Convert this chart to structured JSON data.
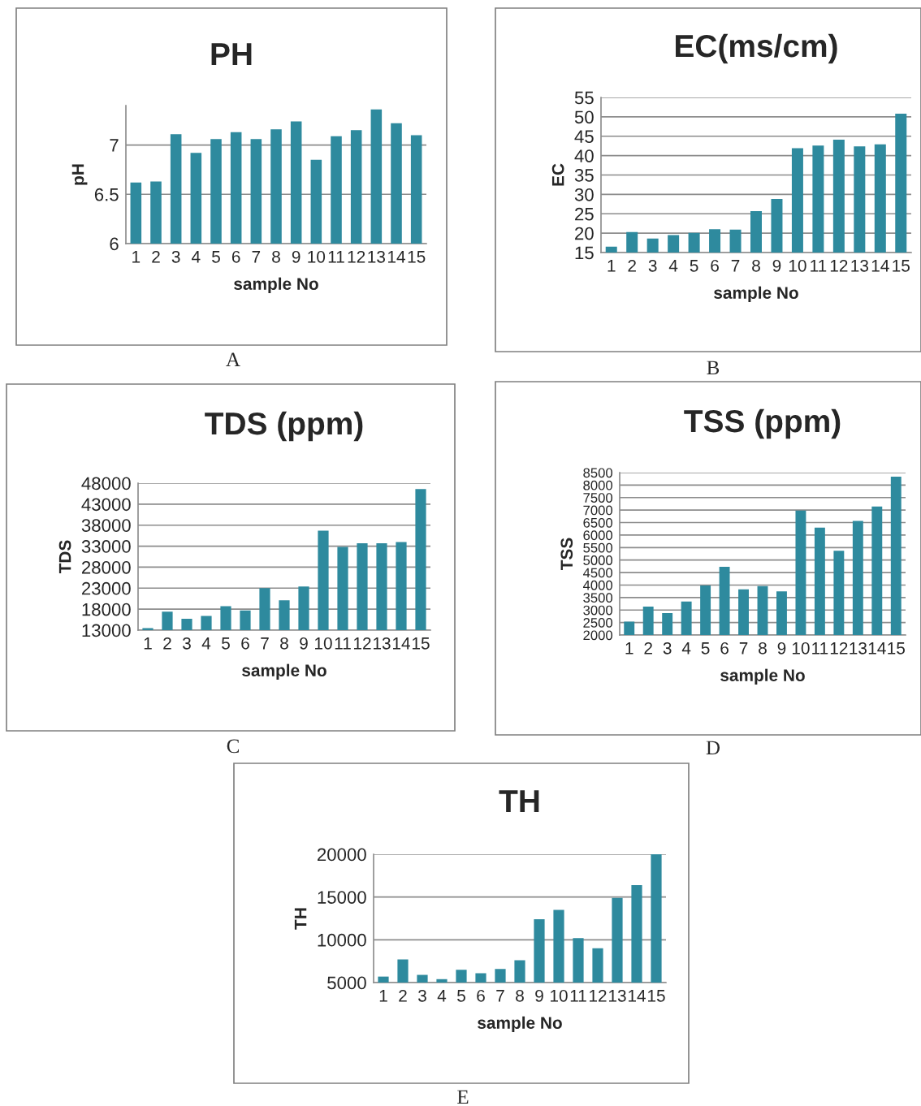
{
  "chart_data": [
    {
      "type": "bar",
      "title": "PH",
      "xlabel": "sample No",
      "ylabel": "pH",
      "annotations": [
        "A"
      ],
      "categories": [
        "1",
        "2",
        "3",
        "4",
        "5",
        "6",
        "7",
        "8",
        "9",
        "10",
        "11",
        "12",
        "13",
        "14",
        "15"
      ],
      "color": "#2e8a9e",
      "values": [
        6.62,
        6.63,
        7.11,
        6.92,
        7.06,
        7.13,
        7.06,
        7.16,
        7.24,
        6.85,
        7.09,
        7.15,
        7.36,
        7.22,
        7.1
      ],
      "ylim": [
        6,
        7.4
      ],
      "yticks": [
        6,
        6.5,
        7
      ],
      "grid": "y"
    },
    {
      "type": "bar",
      "title": "EC(ms/cm)",
      "xlabel": "sample No",
      "ylabel": "EC",
      "annotations": [
        "B"
      ],
      "categories": [
        "1",
        "2",
        "3",
        "4",
        "5",
        "6",
        "7",
        "8",
        "9",
        "10",
        "11",
        "12",
        "13",
        "14",
        "15"
      ],
      "color": "#2e8a9e",
      "values": [
        16.5,
        20.3,
        18.6,
        19.5,
        20.1,
        21.0,
        20.9,
        25.7,
        28.8,
        41.9,
        42.6,
        44.1,
        42.4,
        42.9,
        50.8
      ],
      "ylim": [
        15,
        55
      ],
      "yticks": [
        15,
        20,
        25,
        30,
        35,
        40,
        45,
        50,
        55
      ],
      "grid": "y"
    },
    {
      "type": "bar",
      "title": "TDS (ppm)",
      "xlabel": "sample No",
      "ylabel": "TDS",
      "annotations": [
        "C"
      ],
      "categories": [
        "1",
        "2",
        "3",
        "4",
        "5",
        "6",
        "7",
        "8",
        "9",
        "10",
        "11",
        "12",
        "13",
        "14",
        "15"
      ],
      "color": "#2e8a9e",
      "values": [
        13500,
        17400,
        15700,
        16400,
        18700,
        17700,
        23000,
        20100,
        23400,
        36700,
        32800,
        33700,
        33700,
        34000,
        46600
      ],
      "ylim": [
        13000,
        48000
      ],
      "yticks": [
        13000,
        18000,
        23000,
        28000,
        33000,
        38000,
        43000,
        48000
      ],
      "grid": "y"
    },
    {
      "type": "bar",
      "title": "TSS (ppm)",
      "xlabel": "sample No",
      "ylabel": "TSS",
      "annotations": [
        "D"
      ],
      "categories": [
        "1",
        "2",
        "3",
        "4",
        "5",
        "6",
        "7",
        "8",
        "9",
        "10",
        "11",
        "12",
        "13",
        "14",
        "15"
      ],
      "color": "#2e8a9e",
      "values": [
        2540,
        3140,
        2880,
        3340,
        3980,
        4730,
        3830,
        3960,
        3750,
        6980,
        6300,
        5370,
        6570,
        7140,
        8340
      ],
      "ylim": [
        2000,
        8500
      ],
      "yticks": [
        2000,
        2500,
        3000,
        3500,
        4000,
        4500,
        5000,
        5500,
        6000,
        6500,
        7000,
        7500,
        8000,
        8500
      ],
      "grid": "y"
    },
    {
      "type": "bar",
      "title": "TH",
      "xlabel": "sample No",
      "ylabel": "TH",
      "annotations": [
        "E"
      ],
      "categories": [
        "1",
        "2",
        "3",
        "4",
        "5",
        "6",
        "7",
        "8",
        "9",
        "10",
        "11",
        "12",
        "13",
        "14",
        "15"
      ],
      "color": "#2e8a9e",
      "values": [
        5700,
        7700,
        5900,
        5400,
        6500,
        6100,
        6600,
        7600,
        12400,
        13500,
        10200,
        9000,
        14900,
        16400,
        20000
      ],
      "ylim": [
        5000,
        20000
      ],
      "yticks": [
        5000,
        10000,
        15000,
        20000
      ],
      "grid": "y"
    }
  ]
}
